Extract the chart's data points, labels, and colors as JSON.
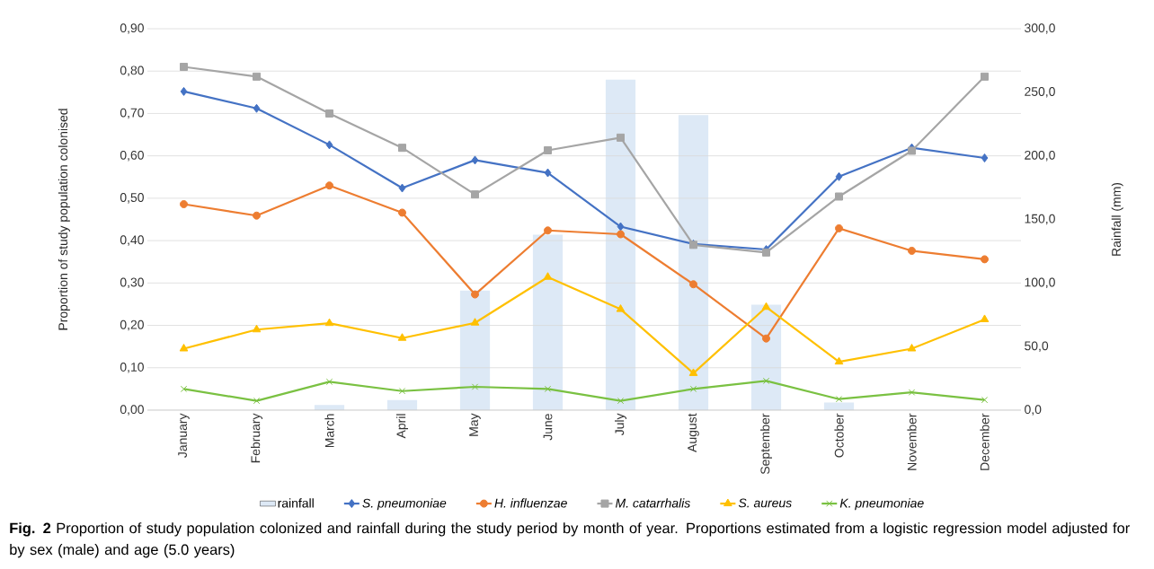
{
  "chart_data": {
    "type": "line",
    "categories": [
      "January",
      "February",
      "March",
      "April",
      "May",
      "June",
      "July",
      "August",
      "September",
      "October",
      "November",
      "December"
    ],
    "series": [
      {
        "name": "rainfall",
        "type": "bar",
        "axis": "y2",
        "color": "#dde9f6",
        "values": [
          0,
          0,
          4,
          8,
          94,
          138,
          260,
          232,
          83,
          6,
          0,
          0
        ]
      },
      {
        "name": "*S. pneumoniae*",
        "color": "#4472c4",
        "marker": "diamond",
        "values": [
          0.752,
          0.712,
          0.626,
          0.524,
          0.59,
          0.56,
          0.433,
          0.392,
          0.379,
          0.551,
          0.619,
          0.595
        ]
      },
      {
        "name": "*H. influenzae*",
        "color": "#ed7d31",
        "marker": "circle",
        "values": [
          0.486,
          0.459,
          0.53,
          0.466,
          0.273,
          0.424,
          0.415,
          0.297,
          0.169,
          0.429,
          0.376,
          0.356
        ]
      },
      {
        "name": "*M. catarrhalis*",
        "color": "#a5a5a5",
        "marker": "square",
        "values": [
          0.81,
          0.787,
          0.7,
          0.619,
          0.509,
          0.613,
          0.643,
          0.39,
          0.372,
          0.504,
          0.612,
          0.787
        ]
      },
      {
        "name": "*S. aureus*",
        "color": "#ffc000",
        "marker": "triangle",
        "values": [
          0.145,
          0.19,
          0.205,
          0.17,
          0.206,
          0.314,
          0.238,
          0.087,
          0.243,
          0.114,
          0.145,
          0.214
        ]
      },
      {
        "name": "*K. pneumoniae*",
        "color": "#7ac142",
        "marker": "cross",
        "values": [
          0.05,
          0.022,
          0.067,
          0.045,
          0.055,
          0.05,
          0.022,
          0.05,
          0.069,
          0.026,
          0.042,
          0.024
        ]
      }
    ],
    "ylabel": "Proportion of study population colonised",
    "y2label": "Rainfall (mm)",
    "ylim": [
      0,
      0.9
    ],
    "yticks": [
      {
        "value": 0,
        "label": "0,00"
      },
      {
        "value": 0.1,
        "label": "0,10"
      },
      {
        "value": 0.2,
        "label": "0,20"
      },
      {
        "value": 0.3,
        "label": "0,30"
      },
      {
        "value": 0.4,
        "label": "0,40"
      },
      {
        "value": 0.5,
        "label": "0,50"
      },
      {
        "value": 0.6,
        "label": "0,60"
      },
      {
        "value": 0.7,
        "label": "0,70"
      },
      {
        "value": 0.8,
        "label": "0,80"
      },
      {
        "value": 0.9,
        "label": "0,90"
      }
    ],
    "y2lim": [
      0,
      300
    ],
    "y2ticks": [
      {
        "value": 0,
        "label": "0,0"
      },
      {
        "value": 50,
        "label": "50,0"
      },
      {
        "value": 100,
        "label": "100,0"
      },
      {
        "value": 150,
        "label": "150,0"
      },
      {
        "value": 200,
        "label": "200,0"
      },
      {
        "value": 250,
        "label": "250,0"
      },
      {
        "value": 300,
        "label": "300,0"
      }
    ],
    "grid": "y",
    "legend": "bottom",
    "annotations": [
      "**Fig. 2** Proportion of study population colonized and rainfall during the study period by month of year. Proportions estimated from a logistic regression model adjusted for by sex (male) and age (5.0 years)"
    ]
  }
}
